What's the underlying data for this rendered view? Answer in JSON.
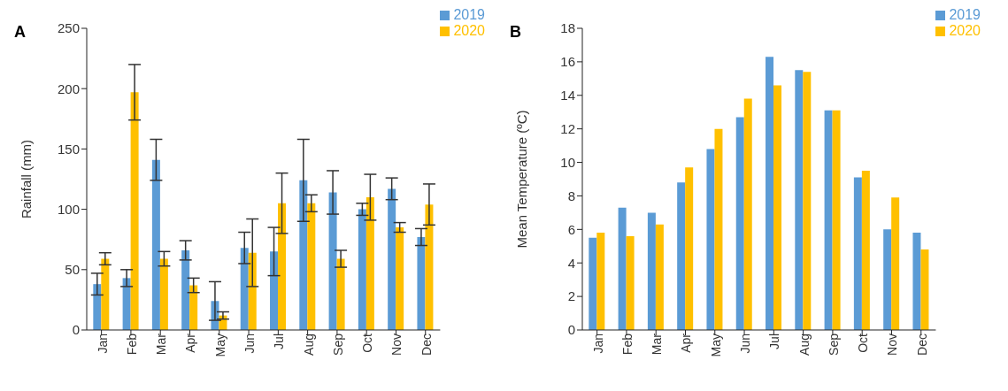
{
  "chart_data": [
    {
      "type": "bar",
      "title": "A",
      "ylabel": "Rainfall (mm)",
      "categories": [
        "Jan",
        "Feb",
        "Mar",
        "Apr",
        "May",
        "Jun",
        "Jul",
        "Aug",
        "Sep",
        "Oct",
        "Nov",
        "Dec"
      ],
      "ylim": [
        0,
        250
      ],
      "yticks": [
        0,
        50,
        100,
        150,
        200,
        250
      ],
      "grid": false,
      "legend": "top right",
      "series": [
        {
          "name": "2019",
          "color": "#5b9bd5",
          "values": [
            38,
            43,
            141,
            66,
            24,
            68,
            65,
            124,
            114,
            100,
            117,
            77
          ],
          "errors": [
            9,
            7,
            17,
            8,
            16,
            13,
            20,
            34,
            18,
            5,
            9,
            7
          ]
        },
        {
          "name": "2020",
          "color": "#ffc000",
          "values": [
            59,
            197,
            59,
            37,
            12,
            64,
            105,
            105,
            59,
            110,
            85,
            104
          ],
          "errors": [
            5,
            23,
            6,
            6,
            3,
            28,
            25,
            7,
            7,
            19,
            4,
            17
          ]
        }
      ]
    },
    {
      "type": "bar",
      "title": "B",
      "ylabel": "Mean Temperature (ºC)",
      "categories": [
        "Jan",
        "Feb",
        "Mar",
        "Apr",
        "May",
        "Jun",
        "Jul",
        "Aug",
        "Sep",
        "Oct",
        "Nov",
        "Dec"
      ],
      "ylim": [
        0,
        18
      ],
      "yticks": [
        0,
        2,
        4,
        6,
        8,
        10,
        12,
        14,
        16,
        18
      ],
      "grid": false,
      "legend": "top right",
      "series": [
        {
          "name": "2019",
          "color": "#5b9bd5",
          "values": [
            5.5,
            7.3,
            7.0,
            8.8,
            10.8,
            12.7,
            16.3,
            15.5,
            13.1,
            9.1,
            6.0,
            5.8
          ]
        },
        {
          "name": "2020",
          "color": "#ffc000",
          "values": [
            5.8,
            5.6,
            6.3,
            9.7,
            12.0,
            13.8,
            14.6,
            15.4,
            13.1,
            9.5,
            7.9,
            4.8
          ]
        }
      ]
    }
  ]
}
